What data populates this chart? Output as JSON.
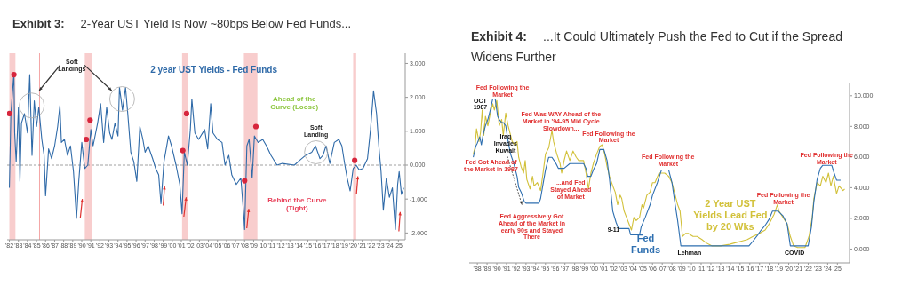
{
  "chart_data": [
    {
      "type": "line",
      "title": "Exhibit 3:",
      "subtitle": "2-Year UST Yield Is Now ~80bps Below Fed Funds...",
      "xlim": [
        "1981-10",
        "2025-10"
      ],
      "ylim": [
        -2.2,
        3.3
      ],
      "xticks": [
        {
          "value": "1982",
          "label": "'82"
        },
        {
          "value": "1983",
          "label": "'83"
        },
        {
          "value": "1984",
          "label": "'84"
        },
        {
          "value": "1985",
          "label": "'85"
        },
        {
          "value": "1986",
          "label": "'86"
        },
        {
          "value": "1987",
          "label": "'87"
        },
        {
          "value": "1988",
          "label": "'88"
        },
        {
          "value": "1989",
          "label": "'89"
        },
        {
          "value": "1990",
          "label": "'90"
        },
        {
          "value": "1991",
          "label": "'91"
        },
        {
          "value": "1992",
          "label": "'92"
        },
        {
          "value": "1993",
          "label": "'93"
        },
        {
          "value": "1994",
          "label": "'94"
        },
        {
          "value": "1995",
          "label": "'95"
        },
        {
          "value": "1996",
          "label": "'96"
        },
        {
          "value": "1997",
          "label": "'97"
        },
        {
          "value": "1998",
          "label": "'98"
        },
        {
          "value": "1999",
          "label": "'99"
        },
        {
          "value": "2000",
          "label": "'00"
        },
        {
          "value": "2001",
          "label": "'01"
        },
        {
          "value": "2002",
          "label": "'02"
        },
        {
          "value": "2003",
          "label": "'03"
        },
        {
          "value": "2004",
          "label": "'04"
        },
        {
          "value": "2005",
          "label": "'05"
        },
        {
          "value": "2006",
          "label": "'06"
        },
        {
          "value": "2007",
          "label": "'07"
        },
        {
          "value": "2008",
          "label": "'08"
        },
        {
          "value": "2009",
          "label": "'09"
        },
        {
          "value": "2010",
          "label": "'10"
        },
        {
          "value": "2011",
          "label": "'11"
        },
        {
          "value": "2012",
          "label": "'12"
        },
        {
          "value": "2013",
          "label": "'13"
        },
        {
          "value": "2014",
          "label": "'14"
        },
        {
          "value": "2015",
          "label": "'15"
        },
        {
          "value": "2016",
          "label": "'16"
        },
        {
          "value": "2017",
          "label": "'17"
        },
        {
          "value": "2018",
          "label": "'18"
        },
        {
          "value": "2019",
          "label": "'19"
        },
        {
          "value": "2020",
          "label": "'20"
        },
        {
          "value": "2021",
          "label": "'21"
        },
        {
          "value": "2022",
          "label": "'22"
        },
        {
          "value": "2023",
          "label": "'23"
        },
        {
          "value": "2024",
          "label": "'24"
        },
        {
          "value": "2025",
          "label": "'25"
        }
      ],
      "yticks": [
        {
          "value": -2,
          "label": "-2.000"
        },
        {
          "value": -1,
          "label": "-1.000"
        },
        {
          "value": 0,
          "label": "0.000"
        },
        {
          "value": 1,
          "label": "1.000"
        },
        {
          "value": 2,
          "label": "2.000"
        },
        {
          "value": 3,
          "label": "3.000"
        }
      ],
      "series": [
        {
          "name": "2 year UST Yields - Fed Funds",
          "color": "#2f6aa8",
          "x": [
            "1982-01",
            "1982-03",
            "1982-07",
            "1982-08",
            "1982-10",
            "1983-01",
            "1983-03",
            "1983-05",
            "1983-09",
            "1984-01",
            "1984-04",
            "1984-07",
            "1984-10",
            "1985-01",
            "1985-04",
            "1985-08",
            "1985-11",
            "1986-01",
            "1986-05",
            "1986-09",
            "1987-01",
            "1987-05",
            "1987-08",
            "1987-10",
            "1988-02",
            "1988-06",
            "1988-10",
            "1989-02",
            "1989-06",
            "1989-09",
            "1990-01",
            "1990-05",
            "1990-09",
            "1991-01",
            "1991-04",
            "1991-10",
            "1992-02",
            "1992-06",
            "1992-10",
            "1993-02",
            "1993-05",
            "1993-09",
            "1994-01",
            "1994-03",
            "1994-07",
            "1994-11",
            "1995-02",
            "1995-06",
            "1995-10",
            "1996-02",
            "1996-06",
            "1996-10",
            "1997-01",
            "1997-05",
            "1997-11",
            "1998-03",
            "1998-07",
            "1998-10",
            "1999-02",
            "1999-08",
            "1999-12",
            "2000-06",
            "2000-11",
            "2001-02",
            "2001-05",
            "2001-09",
            "2002-01",
            "2002-03",
            "2002-07",
            "2002-12",
            "2003-08",
            "2003-12",
            "2004-04",
            "2004-07",
            "2005-01",
            "2005-07",
            "2005-11",
            "2006-04",
            "2006-08",
            "2007-02",
            "2007-08",
            "2007-12",
            "2008-01",
            "2008-04",
            "2008-07",
            "2008-11",
            "2009-02",
            "2009-07",
            "2010-01",
            "2010-06",
            "2010-12",
            "2011-08",
            "2012-03",
            "2013-07",
            "2014-02",
            "2014-10",
            "2015-06",
            "2015-11",
            "2016-05",
            "2016-09",
            "2017-01",
            "2017-06",
            "2017-12",
            "2018-06",
            "2018-10",
            "2019-02",
            "2019-05",
            "2019-09",
            "2020-01",
            "2020-05",
            "2020-09",
            "2021-02",
            "2021-08",
            "2021-12",
            "2022-04",
            "2022-08",
            "2022-11",
            "2023-02",
            "2023-05",
            "2023-09",
            "2024-01",
            "2024-05",
            "2024-09",
            "2024-12",
            "2025-02",
            "2025-05",
            "2025-08"
          ],
          "values": [
            -0.67,
            1.52,
            2.71,
            0.95,
            0.1,
            1.71,
            -0.48,
            1.24,
            1.52,
            0.95,
            2.67,
            0.29,
            1.9,
            1.14,
            1.71,
            0.76,
            0.29,
            -0.9,
            0.48,
            0.19,
            0.57,
            1.14,
            1.76,
            0.67,
            0.76,
            0.29,
            0.57,
            -0.19,
            -1.57,
            -0.48,
            0.67,
            -0.1,
            0.0,
            1.05,
            0.57,
            1.24,
            1.81,
            0.67,
            1.71,
            0.95,
            0.76,
            1.24,
            0.86,
            2.29,
            1.62,
            2.29,
            1.52,
            0.38,
            0.1,
            -0.48,
            1.14,
            0.76,
            0.38,
            0.57,
            0.19,
            -0.1,
            -0.29,
            -1.14,
            0.1,
            0.86,
            0.57,
            0.0,
            -0.57,
            -1.43,
            0.38,
            0.0,
            1.05,
            1.95,
            0.95,
            0.76,
            1.05,
            0.48,
            1.81,
            0.95,
            0.76,
            0.67,
            0.0,
            0.29,
            -0.29,
            -0.57,
            -0.38,
            -1.52,
            -1.9,
            0.57,
            0.76,
            -0.38,
            0.86,
            0.67,
            0.76,
            0.57,
            0.29,
            0.0,
            0.05,
            0.0,
            0.14,
            0.29,
            0.38,
            0.57,
            0.19,
            0.29,
            0.57,
            0.05,
            0.67,
            0.76,
            0.57,
            0.0,
            -0.38,
            -0.76,
            -0.1,
            0.0,
            -0.14,
            -0.1,
            0.19,
            1.05,
            2.19,
            1.52,
            0.57,
            -0.19,
            -1.33,
            -0.38,
            -0.95,
            -0.67,
            -1.9,
            -0.57,
            -0.19,
            -0.86,
            -0.67
          ]
        },
        {
          "type": "scatter",
          "color": "#d7263d",
          "marker": "circle",
          "x": [
            "1982-01",
            "1982-07",
            "1990-07",
            "1990-12",
            "2001-03",
            "2001-08",
            "2008-01",
            "2009-04",
            "2020-03"
          ],
          "values": [
            1.52,
            2.67,
            0.76,
            1.33,
            0.43,
            1.52,
            -0.46,
            1.14,
            0.14
          ]
        }
      ],
      "bands": [
        {
          "axis": "x",
          "from": "1982-01",
          "to": "1982-09",
          "color": "#f6c1c1"
        },
        {
          "axis": "x",
          "from": "1990-05",
          "to": "1991-03",
          "color": "#f6c1c1"
        },
        {
          "axis": "x",
          "from": "2001-02",
          "to": "2001-10",
          "color": "#f6c1c1"
        },
        {
          "axis": "x",
          "from": "2007-12",
          "to": "2009-06",
          "color": "#f6c1c1"
        },
        {
          "axis": "x",
          "from": "2020-01",
          "to": "2020-05",
          "color": "#f6c1c1"
        }
      ],
      "ref_lines": [
        {
          "axis": "x",
          "value": "1985-05",
          "color": "#f4a6a6",
          "line_style": "solid"
        },
        {
          "axis": "y",
          "value": 0,
          "color": "#888888",
          "line_style": "dashed"
        }
      ],
      "annotations": [
        "Soft Landings",
        "Ahead of the Curve (Loose)",
        "Soft Landing",
        "Behind the Curve (Tight)"
      ]
    },
    {
      "type": "line",
      "title": "Exhibit 4:",
      "subtitle": "...It Could Ultimately Push the Fed to Cut if the Spread Widens Further",
      "xlim": [
        "1987-03",
        "2026-04"
      ],
      "ylim": [
        -0.9,
        10.8
      ],
      "xticks": [
        {
          "value": "1988",
          "label": "'88"
        },
        {
          "value": "1989",
          "label": "'89"
        },
        {
          "value": "1990",
          "label": "'90"
        },
        {
          "value": "1991",
          "label": "'91"
        },
        {
          "value": "1992",
          "label": "'92"
        },
        {
          "value": "1993",
          "label": "'93"
        },
        {
          "value": "1994",
          "label": "'94"
        },
        {
          "value": "1995",
          "label": "'95"
        },
        {
          "value": "1996",
          "label": "'96"
        },
        {
          "value": "1997",
          "label": "'97"
        },
        {
          "value": "1998",
          "label": "'98"
        },
        {
          "value": "1999",
          "label": "'99"
        },
        {
          "value": "2000",
          "label": "'00"
        },
        {
          "value": "2001",
          "label": "'01"
        },
        {
          "value": "2002",
          "label": "'02"
        },
        {
          "value": "2003",
          "label": "'03"
        },
        {
          "value": "2004",
          "label": "'04"
        },
        {
          "value": "2005",
          "label": "'05"
        },
        {
          "value": "2006",
          "label": "'06"
        },
        {
          "value": "2007",
          "label": "'07"
        },
        {
          "value": "2008",
          "label": "'08"
        },
        {
          "value": "2009",
          "label": "'09"
        },
        {
          "value": "2010",
          "label": "'10"
        },
        {
          "value": "2011",
          "label": "'11"
        },
        {
          "value": "2012",
          "label": "'12"
        },
        {
          "value": "2013",
          "label": "'13"
        },
        {
          "value": "2014",
          "label": "'14"
        },
        {
          "value": "2015",
          "label": "'15"
        },
        {
          "value": "2016",
          "label": "'16"
        },
        {
          "value": "2017",
          "label": "'17"
        },
        {
          "value": "2018",
          "label": "'18"
        },
        {
          "value": "2019",
          "label": "'19"
        },
        {
          "value": "2020",
          "label": "'20"
        },
        {
          "value": "2021",
          "label": "'21"
        },
        {
          "value": "2022",
          "label": "'22"
        },
        {
          "value": "2023",
          "label": "'23"
        },
        {
          "value": "2024",
          "label": "'24"
        },
        {
          "value": "2025",
          "label": "'25"
        }
      ],
      "yticks": [
        {
          "value": 0,
          "label": "0.000"
        },
        {
          "value": 2,
          "label": "2.000"
        },
        {
          "value": 4,
          "label": "4.000"
        },
        {
          "value": 6,
          "label": "6.000"
        },
        {
          "value": 8,
          "label": "8.000"
        },
        {
          "value": 10,
          "label": "10.000"
        }
      ],
      "series": [
        {
          "name": "2 Year UST Yields Lead Fed by 20 Wks",
          "color": "#d2c13a",
          "x": [
            "1987-08",
            "1987-10",
            "1987-12",
            "1988-03",
            "1988-05",
            "1988-07",
            "1988-09",
            "1988-11",
            "1989-02",
            "1989-05",
            "1989-08",
            "1989-10",
            "1990-01",
            "1990-04",
            "1990-07",
            "1990-09",
            "1990-12",
            "1991-03",
            "1991-06",
            "1991-08",
            "1991-11",
            "1992-02",
            "1992-04",
            "1992-07",
            "1992-10",
            "1992-12",
            "1993-02",
            "1993-06",
            "1993-09",
            "1993-11",
            "1994-03",
            "1994-07",
            "1994-10",
            "1995-01",
            "1995-05",
            "1995-09",
            "1995-11",
            "1996-03",
            "1996-07",
            "1996-09",
            "1996-12",
            "1997-03",
            "1997-07",
            "1997-11",
            "1998-03",
            "1998-06",
            "1998-12",
            "1999-03",
            "1999-06",
            "1999-09",
            "1999-12",
            "2000-04",
            "2000-08",
            "2000-11",
            "2001-02",
            "2001-05",
            "2001-08",
            "2001-12",
            "2002-03",
            "2002-06",
            "2002-09",
            "2002-11",
            "2003-02",
            "2003-05",
            "2003-08",
            "2003-11",
            "2004-02",
            "2004-05",
            "2004-09",
            "2004-12",
            "2005-02",
            "2005-06",
            "2005-10",
            "2006-01",
            "2006-04",
            "2006-09",
            "2006-12",
            "2007-04",
            "2007-09",
            "2008-01",
            "2008-05",
            "2008-08",
            "2008-11",
            "2009-02",
            "2009-06",
            "2009-09",
            "2010-03",
            "2010-08",
            "2011-02",
            "2011-07",
            "2012-02",
            "2013-01",
            "2013-12",
            "2014-07",
            "2015-03",
            "2015-10",
            "2016-05",
            "2017-01",
            "2017-08",
            "2018-01",
            "2018-07",
            "2018-11",
            "2019-01",
            "2019-06",
            "2019-11",
            "2020-03",
            "2020-07",
            "2020-12",
            "2021-09",
            "2022-02",
            "2022-06",
            "2022-08",
            "2022-12",
            "2023-04",
            "2023-07",
            "2023-11",
            "2024-02",
            "2024-05",
            "2024-08",
            "2024-12",
            "2025-03",
            "2025-08",
            "2025-10"
          ],
          "values": [
            6.19,
            6.6,
            7.84,
            7.01,
            7.63,
            9.07,
            7.42,
            8.66,
            8.04,
            8.87,
            9.48,
            9.07,
            9.69,
            8.04,
            8.45,
            7.42,
            8.87,
            8.04,
            7.42,
            7.01,
            6.8,
            7.01,
            5.98,
            5.36,
            4.95,
            5.77,
            4.54,
            3.92,
            4.74,
            4.12,
            4.33,
            3.81,
            4.95,
            6.19,
            6.6,
            7.73,
            7.01,
            6.19,
            5.57,
            4.95,
            5.77,
            6.39,
            5.77,
            6.39,
            5.98,
            5.77,
            5.77,
            4.95,
            3.92,
            4.95,
            5.57,
            6.19,
            6.7,
            6.8,
            6.19,
            5.36,
            4.74,
            4.12,
            3.71,
            2.89,
            3.51,
            3.3,
            2.47,
            2.06,
            1.65,
            1.24,
            2.06,
            1.86,
            2.06,
            2.89,
            2.68,
            3.51,
            3.71,
            4.33,
            4.33,
            4.95,
            4.95,
            4.95,
            4.74,
            4.33,
            3.51,
            2.89,
            2.47,
            0.82,
            1.03,
            1.03,
            0.82,
            0.82,
            0.62,
            0.41,
            0.21,
            0.21,
            0.31,
            0.41,
            0.52,
            0.62,
            0.82,
            1.03,
            1.24,
            1.65,
            2.27,
            2.89,
            2.47,
            2.06,
            1.65,
            0.82,
            0.21,
            0.1,
            0.1,
            0.82,
            2.06,
            3.3,
            4.33,
            4.12,
            4.74,
            4.33,
            4.95,
            4.12,
            4.74,
            3.61,
            4.12,
            3.81,
            3.92
          ]
        },
        {
          "name": "Fed Funds",
          "color": "#2e6fb0",
          "x": [
            "1987-08",
            "1987-11",
            "1988-01",
            "1988-04",
            "1988-06",
            "1988-08",
            "1988-11",
            "1989-02",
            "1989-05",
            "1989-08",
            "1989-11",
            "1990-02",
            "1990-04",
            "1990-07",
            "1990-09",
            "1990-12",
            "1991-03",
            "1991-06",
            "1991-10",
            "1992-02",
            "1992-04",
            "1992-07",
            "1992-11",
            "1993-01",
            "1994-05",
            "1994-07",
            "1994-10",
            "1995-01",
            "1995-05",
            "1995-09",
            "1996-01",
            "1996-05",
            "1996-12",
            "1997-07",
            "1998-12",
            "1999-03",
            "1999-05",
            "1999-09",
            "1999-12",
            "2000-04",
            "2000-08",
            "2001-01",
            "2001-05",
            "2001-08",
            "2001-12",
            "2002-04",
            "2002-07",
            "2003-08",
            "2003-10",
            "2004-09",
            "2004-11",
            "2005-04",
            "2005-10",
            "2006-01",
            "2006-07",
            "2006-12",
            "2007-09",
            "2008-01",
            "2008-05",
            "2008-08",
            "2008-12",
            "2015-12",
            "2016-05",
            "2016-11",
            "2017-03",
            "2017-08",
            "2018-01",
            "2018-05",
            "2018-12",
            "2019-06",
            "2019-11",
            "2020-03",
            "2022-01",
            "2022-05",
            "2022-08",
            "2022-12",
            "2023-04",
            "2023-07",
            "2024-06",
            "2024-09",
            "2024-12",
            "2025-05"
          ],
          "values": [
            5.98,
            6.7,
            6.91,
            7.32,
            6.8,
            7.42,
            8.04,
            8.45,
            9.07,
            9.79,
            9.79,
            8.66,
            8.45,
            8.25,
            8.25,
            8.04,
            7.01,
            6.19,
            5.57,
            4.74,
            4.02,
            3.71,
            3.09,
            2.99,
            2.99,
            3.3,
            4.23,
            5.15,
            5.98,
            5.98,
            5.67,
            5.26,
            5.26,
            5.57,
            5.57,
            5.26,
            4.74,
            4.74,
            5.15,
            5.57,
            6.49,
            6.49,
            5.77,
            4.54,
            2.47,
            1.75,
            1.34,
            1.34,
            0.93,
            0.93,
            1.44,
            2.06,
            2.89,
            3.51,
            4.33,
            5.15,
            5.15,
            4.33,
            2.89,
            1.86,
            0.21,
            0.21,
            0.52,
            0.93,
            1.24,
            1.55,
            1.96,
            2.47,
            2.47,
            2.16,
            1.65,
            0.21,
            0.21,
            1.44,
            3.09,
            4.54,
            5.26,
            5.46,
            5.46,
            4.95,
            4.49,
            4.49
          ]
        }
      ],
      "annotations": [
        "Fed Following the Market",
        "OCT 1987",
        {
          "text": "Iraq Invades Kuwait",
          "x": "1992-08",
          "y": 2.89
        },
        "Fed Got Ahead of the Market in 1987",
        "Fed Was WAY Ahead of the Market in '94-95 Mid Cycle Slowdown...",
        "Fed Following the Market",
        "...and Fed Stayed Ahead of Market",
        "Fed Aggressively Got Ahead of the Market in early 90s and Stayed There",
        "9-11",
        "Fed Following the Market",
        "Lehman",
        "Fed Following the Market",
        "COVID",
        "Fed Following the Market"
      ]
    }
  ]
}
